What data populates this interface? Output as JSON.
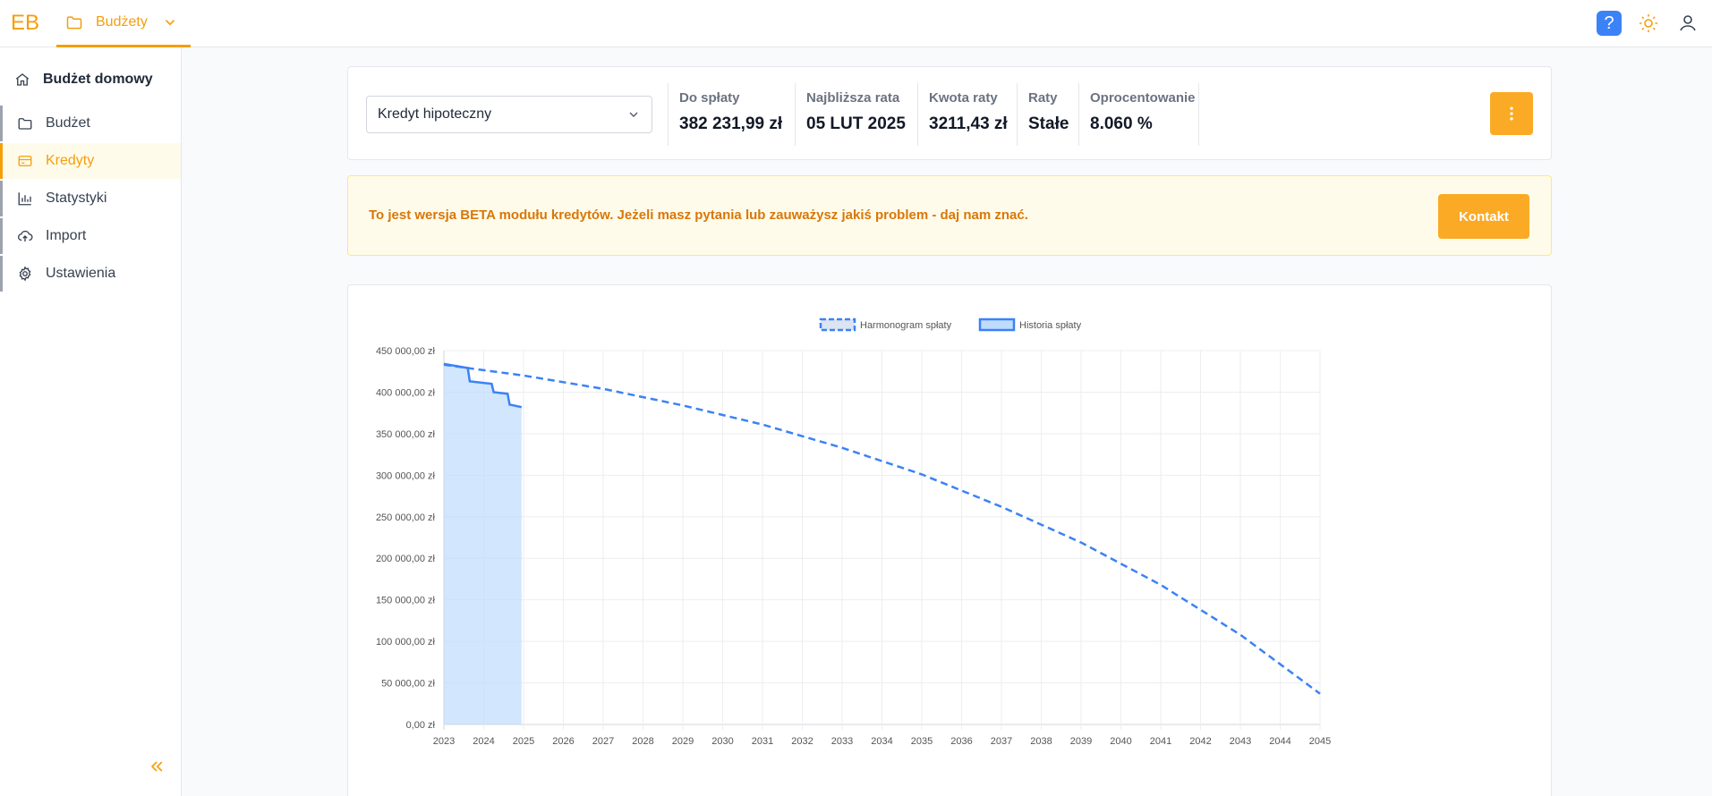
{
  "app": {
    "logo": "EB"
  },
  "topbar": {
    "budget_menu_label": "Budżety",
    "help_label": "?"
  },
  "sidebar": {
    "header": "Budżet domowy",
    "items": [
      {
        "label": "Budżet",
        "icon": "folder-icon",
        "active": false
      },
      {
        "label": "Kredyty",
        "icon": "credit-card-icon",
        "active": true
      },
      {
        "label": "Statystyki",
        "icon": "bar-chart-icon",
        "active": false
      },
      {
        "label": "Import",
        "icon": "cloud-upload-icon",
        "active": false
      },
      {
        "label": "Ustawienia",
        "icon": "gear-icon",
        "active": false
      }
    ]
  },
  "loan": {
    "selected": "Kredyt hipoteczny",
    "stats": [
      {
        "label": "Do spłaty",
        "value": "382 231,99 zł"
      },
      {
        "label": "Najbliższa rata",
        "value": "05 LUT 2025"
      },
      {
        "label": "Kwota raty",
        "value": "3211,43 zł"
      },
      {
        "label": "Raty",
        "value": "Stałe"
      },
      {
        "label": "Oprocentowanie",
        "value": "8.060 %"
      }
    ]
  },
  "beta": {
    "message": "To jest wersja BETA modułu kredytów. Jeżeli masz pytania lub zauważysz jakiś problem - daj nam znać.",
    "button": "Kontakt"
  },
  "colors": {
    "accent": "#f59e0b",
    "series": "#3b82f6",
    "series_fill": "#bfdbfe"
  },
  "chart_data": {
    "type": "line",
    "title": "",
    "legend": "top-center",
    "grid": true,
    "x_ticks": [
      "2023",
      "2024",
      "2025",
      "2026",
      "2027",
      "2028",
      "2029",
      "2030",
      "2031",
      "2032",
      "2033",
      "2034",
      "2035",
      "2036",
      "2037",
      "2038",
      "2039",
      "2040",
      "2041",
      "2042",
      "2043",
      "2044",
      "2045"
    ],
    "y_ticks": [
      "0,00 zł",
      "50 000,00 zł",
      "100 000,00 zł",
      "150 000,00 zł",
      "200 000,00 zł",
      "250 000,00 zł",
      "300 000,00 zł",
      "350 000,00 zł",
      "400 000,00 zł",
      "450 000,00 zł"
    ],
    "xlim": [
      2023,
      2045
    ],
    "ylim": [
      0,
      450000
    ],
    "series": [
      {
        "name": "Harmonogram spłaty",
        "style": "dashed",
        "x": [
          2023.0,
          2023.6,
          2025.0,
          2027.0,
          2029.0,
          2031.0,
          2033.0,
          2035.0,
          2037.0,
          2039.0,
          2041.0,
          2043.0,
          2045.0
        ],
        "y": [
          433000,
          429000,
          420000,
          404000,
          384000,
          361000,
          333000,
          301000,
          262000,
          219000,
          168000,
          108000,
          37000
        ]
      },
      {
        "name": "Historia spłaty",
        "style": "solid-filled",
        "x": [
          2023.0,
          2023.6,
          2023.65,
          2024.2,
          2024.25,
          2024.6,
          2024.65,
          2024.95
        ],
        "y": [
          434000,
          429000,
          413000,
          410000,
          400000,
          398000,
          385000,
          382000
        ]
      }
    ]
  }
}
